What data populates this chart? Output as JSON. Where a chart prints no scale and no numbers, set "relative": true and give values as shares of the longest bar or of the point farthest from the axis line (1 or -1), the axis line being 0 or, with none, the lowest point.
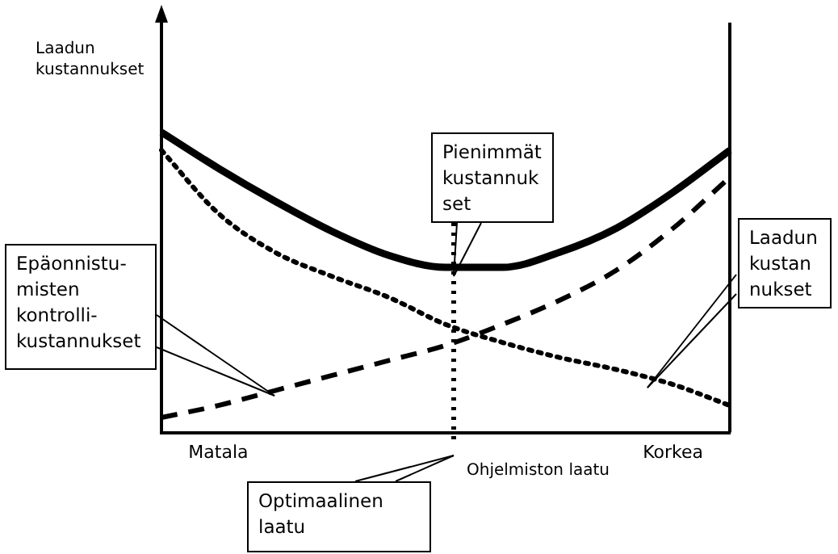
{
  "chart_data": {
    "type": "line",
    "relative": true,
    "xlabel": "Ohjelmiston laatu",
    "ylabel": "Laadun\nkustannukset",
    "categories": [
      null,
      "Matala",
      null,
      null,
      null,
      null,
      null,
      null,
      null,
      "Korkea",
      null
    ],
    "grid": false,
    "legend": false,
    "marker": "none",
    "series": [
      {
        "color": "#000000",
        "line_style": "solid",
        "values": [
          1.0,
          0.88,
          0.77,
          0.67,
          0.59,
          0.55,
          0.55,
          0.6,
          0.68,
          0.8,
          0.94
        ]
      },
      {
        "color": "#000000",
        "line_style": "dotted",
        "values": [
          0.94,
          0.73,
          0.6,
          0.52,
          0.45,
          0.36,
          0.3,
          0.25,
          0.21,
          0.16,
          0.09
        ]
      },
      {
        "color": "#000000",
        "line_style": "dashed",
        "values": [
          0.05,
          0.09,
          0.14,
          0.19,
          0.24,
          0.29,
          0.36,
          0.44,
          0.54,
          0.68,
          0.85
        ]
      }
    ],
    "annotations": [
      "Epäonnistu-\nmisten\nkontrolli-\nkustannukset",
      "Pienimmät\nkustannuk\nset",
      "Laadun\nkustan\nnukset",
      "Optimaalinen\nlaatu"
    ]
  }
}
